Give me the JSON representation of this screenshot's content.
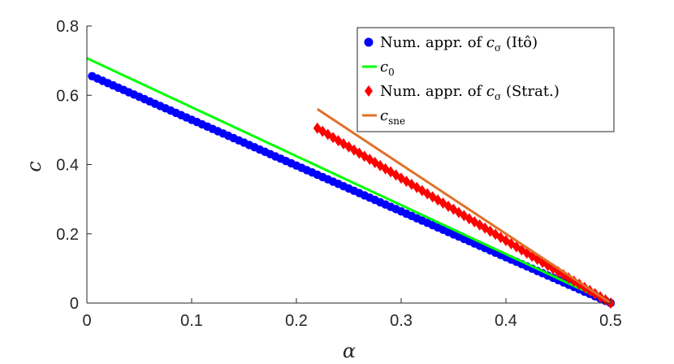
{
  "chart_data": {
    "type": "line",
    "xlabel": "α",
    "ylabel": "c",
    "xlim": [
      0,
      0.5
    ],
    "ylim": [
      0,
      0.8
    ],
    "xticks": [
      "0",
      "0.1",
      "0.2",
      "0.3",
      "0.4",
      "0.5"
    ],
    "yticks": [
      "0",
      "0.2",
      "0.4",
      "0.6",
      "0.8"
    ],
    "grid": false,
    "legend_position": "top-right",
    "series": [
      {
        "name": "Num. appr. of c_σ (Itô)",
        "legend": {
          "pre": "Num. appr. of ",
          "sym": "c",
          "sub": "σ",
          "post": " (Itô)"
        },
        "style": "markers",
        "marker": "circle",
        "color": "#0000ff",
        "x_start": 0.005,
        "x_end": 0.5,
        "x_step": 0.005,
        "y_start": 0.655,
        "y_end": 0.0
      },
      {
        "name": "c_0",
        "legend": {
          "pre": "",
          "sym": "c",
          "sub": "0",
          "post": ""
        },
        "style": "line",
        "color": "#00ff00",
        "x": [
          0,
          0.5
        ],
        "y": [
          0.707,
          0.0
        ]
      },
      {
        "name": "Num. appr. of c_σ (Strat.)",
        "legend": {
          "pre": "Num. appr. of ",
          "sym": "c",
          "sub": "σ",
          "post": " (Strat.)"
        },
        "style": "markers",
        "marker": "diamond",
        "color": "#ff0000",
        "x_start": 0.22,
        "x_end": 0.5,
        "x_step": 0.005,
        "y_start": 0.505,
        "y_end": 0.0
      },
      {
        "name": "c_sne",
        "legend": {
          "pre": "",
          "sym": "c",
          "sub": "sne",
          "post": ""
        },
        "style": "line",
        "color": "#e0702a",
        "x": [
          0.22,
          0.5
        ],
        "y": [
          0.56,
          0.0
        ]
      }
    ]
  }
}
